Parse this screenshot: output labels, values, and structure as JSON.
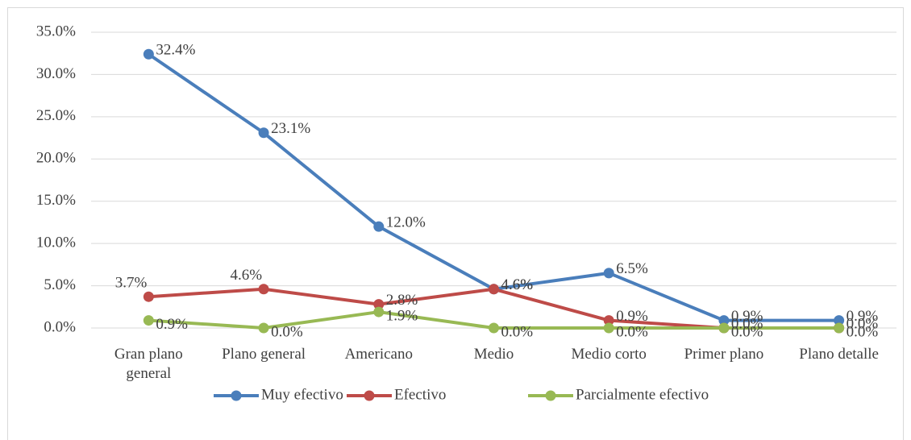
{
  "chart_data": {
    "type": "line",
    "categories": [
      "Gran plano general",
      "Plano general",
      "Americano",
      "Medio",
      "Medio corto",
      "Primer plano",
      "Plano detalle"
    ],
    "series": [
      {
        "name": "Muy efectivo",
        "color": "#4a7ebb",
        "values": [
          32.4,
          23.1,
          12.0,
          4.6,
          6.5,
          0.9,
          0.9
        ],
        "value_labels": [
          "32.4%",
          "23.1%",
          "12.0%",
          "4.6%",
          "6.5%",
          "0.9%",
          "0.9%"
        ]
      },
      {
        "name": "Efectivo",
        "color": "#be4b48",
        "values": [
          3.7,
          4.6,
          2.8,
          4.6,
          0.9,
          0.0,
          0.0
        ],
        "value_labels": [
          "3.7%",
          "4.6%",
          "2.8%",
          "4.6%",
          "0.9%",
          "0.0%",
          "0.0%"
        ]
      },
      {
        "name": "Parcialmente efectivo",
        "color": "#98b954",
        "values": [
          0.9,
          0.0,
          1.9,
          0.0,
          0.0,
          0.0,
          0.0
        ],
        "value_labels": [
          "0.9%",
          "0.0%",
          "1.9%",
          "0.0%",
          "0.0%",
          "0.0%",
          "0.0%"
        ]
      }
    ],
    "ylim": [
      0,
      35
    ],
    "yticks": [
      {
        "value": 0,
        "label": "0.0%"
      },
      {
        "value": 5,
        "label": "5.0%"
      },
      {
        "value": 10,
        "label": "10.0%"
      },
      {
        "value": 15,
        "label": "15.0%"
      },
      {
        "value": 20,
        "label": "20.0%"
      },
      {
        "value": 25,
        "label": "25.0%"
      },
      {
        "value": 30,
        "label": "30.0%"
      },
      {
        "value": 35,
        "label": "35.0%"
      }
    ],
    "grid": true,
    "legend": "bottom"
  }
}
